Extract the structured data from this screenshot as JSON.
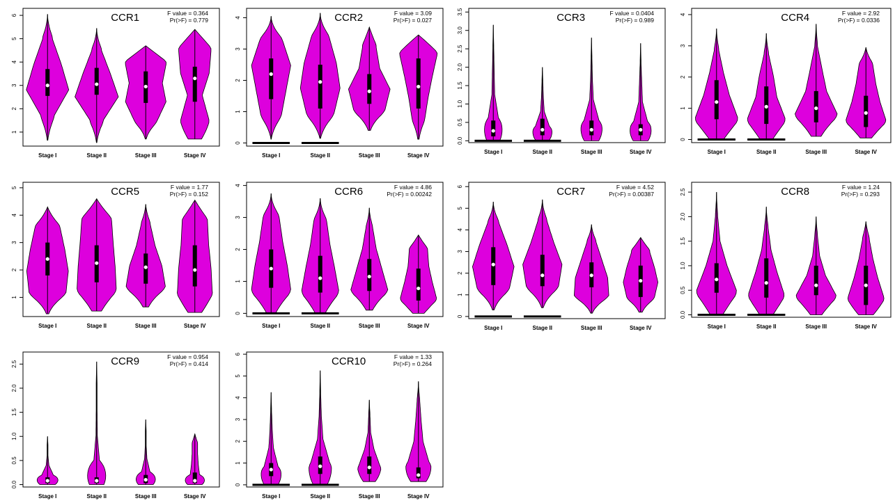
{
  "colors": {
    "violin": "#dd00dd",
    "box": "#000000",
    "median": "#ffffff",
    "axis": "#000000"
  },
  "chart_data": [
    {
      "type": "violin",
      "title": "CCR1",
      "f_label": "F value = 0.364",
      "p_label": "Pr(>F) = 0.779",
      "categories": [
        "Stage I",
        "Stage II",
        "Stage III",
        "Stage IV"
      ],
      "yticks": [
        "1",
        "2",
        "3",
        "4",
        "5",
        "6"
      ],
      "ytick_values": [
        1,
        2,
        3,
        4,
        5,
        6
      ],
      "ylim": [
        0.4,
        6.3
      ],
      "series": [
        {
          "min": 0.65,
          "max": 6.05,
          "q1": 2.55,
          "median": 3.0,
          "q3": 3.7,
          "width_profile": [
            0.04,
            0.3,
            0.92,
            0.6,
            0.22,
            0.03
          ]
        },
        {
          "min": 0.55,
          "max": 5.45,
          "q1": 2.6,
          "median": 3.05,
          "q3": 3.75,
          "width_profile": [
            0.03,
            0.3,
            0.94,
            0.6,
            0.22,
            0.03
          ]
        },
        {
          "min": 0.7,
          "max": 4.7,
          "q1": 2.25,
          "median": 2.95,
          "q3": 3.6,
          "width_profile": [
            0.06,
            0.5,
            0.88,
            0.72,
            0.88,
            0.88
          ]
        },
        {
          "min": 0.7,
          "max": 5.4,
          "q1": 2.3,
          "median": 3.3,
          "q3": 3.8,
          "width_profile": [
            0.82,
            0.58,
            0.32,
            0.62,
            0.7,
            0.7
          ]
        }
      ],
      "zero_bars": []
    },
    {
      "type": "violin",
      "title": "CCR2",
      "f_label": "F value = 3.09",
      "p_label": "Pr(>F) = 0.027",
      "categories": [
        "Stage I",
        "Stage II",
        "Stage III",
        "Stage IV"
      ],
      "yticks": [
        "0",
        "1",
        "2",
        "3",
        "4"
      ],
      "ytick_values": [
        0,
        1,
        2,
        3,
        4
      ],
      "ylim": [
        -0.1,
        4.3
      ],
      "series": [
        {
          "min": 0.12,
          "max": 4.05,
          "q1": 1.4,
          "median": 2.2,
          "q3": 2.7,
          "width_profile": [
            0.02,
            0.45,
            0.65,
            0.85,
            0.5,
            0.04
          ]
        },
        {
          "min": 0.15,
          "max": 4.15,
          "q1": 1.1,
          "median": 1.95,
          "q3": 2.5,
          "width_profile": [
            0.05,
            0.6,
            0.86,
            0.7,
            0.4,
            0.02
          ]
        },
        {
          "min": 0.4,
          "max": 3.7,
          "q1": 1.25,
          "median": 1.65,
          "q3": 2.2,
          "width_profile": [
            0.14,
            0.68,
            0.9,
            0.45,
            0.3,
            0.25
          ]
        },
        {
          "min": 0.12,
          "max": 3.45,
          "q1": 1.1,
          "median": 1.8,
          "q3": 2.7,
          "width_profile": [
            0.08,
            0.28,
            0.42,
            0.6,
            0.8,
            0.9
          ]
        }
      ],
      "zero_bars": [
        1,
        1,
        0,
        0
      ]
    },
    {
      "type": "violin",
      "title": "CCR3",
      "f_label": "F value = 0.0404",
      "p_label": "Pr(>F) = 0.989",
      "categories": [
        "Stage I",
        "Stage II",
        "Stage III",
        "Stage IV"
      ],
      "yticks": [
        "0.0",
        "0.5",
        "1.0",
        "1.5",
        "2.0",
        "2.5",
        "3.0",
        "3.5"
      ],
      "ytick_values": [
        0,
        0.5,
        1,
        1.5,
        2,
        2.5,
        3,
        3.5
      ],
      "ylim": [
        -0.05,
        3.6
      ],
      "series": [
        {
          "min": 0.0,
          "max": 3.15,
          "q1": 0.12,
          "median": 0.27,
          "q3": 0.55,
          "width_profile": [
            0.8,
            0.22,
            0.06,
            0.04,
            0.02,
            0.02
          ]
        },
        {
          "min": 0.0,
          "max": 2.0,
          "q1": 0.15,
          "median": 0.3,
          "q3": 0.6,
          "width_profile": [
            0.8,
            0.3,
            0.08,
            0.04,
            0.02,
            0.02
          ]
        },
        {
          "min": 0.0,
          "max": 2.8,
          "q1": 0.15,
          "median": 0.3,
          "q3": 0.55,
          "width_profile": [
            0.9,
            0.32,
            0.08,
            0.04,
            0.02,
            0.02
          ]
        },
        {
          "min": 0.0,
          "max": 2.65,
          "q1": 0.15,
          "median": 0.3,
          "q3": 0.45,
          "width_profile": [
            0.92,
            0.3,
            0.08,
            0.05,
            0.02,
            0.02
          ]
        }
      ],
      "zero_bars": [
        1,
        1,
        0,
        0
      ]
    },
    {
      "type": "violin",
      "title": "CCR4",
      "f_label": "F value = 2.92",
      "p_label": "Pr(>F) = 0.0336",
      "categories": [
        "Stage I",
        "Stage II",
        "Stage III",
        "Stage IV"
      ],
      "yticks": [
        "0",
        "1",
        "2",
        "3",
        "4"
      ],
      "ytick_values": [
        0,
        1,
        2,
        3,
        4
      ],
      "ylim": [
        -0.1,
        4.2
      ],
      "series": [
        {
          "min": 0.0,
          "max": 3.55,
          "q1": 0.65,
          "median": 1.2,
          "q3": 1.9,
          "width_profile": [
            0.85,
            0.9,
            0.55,
            0.3,
            0.1,
            0.02
          ]
        },
        {
          "min": 0.0,
          "max": 3.4,
          "q1": 0.5,
          "median": 1.05,
          "q3": 1.7,
          "width_profile": [
            0.75,
            0.8,
            0.45,
            0.3,
            0.1,
            0.02
          ]
        },
        {
          "min": 0.1,
          "max": 3.7,
          "q1": 0.55,
          "median": 1.0,
          "q3": 1.55,
          "width_profile": [
            0.6,
            0.9,
            0.45,
            0.25,
            0.06,
            0.02
          ]
        },
        {
          "min": 0.05,
          "max": 2.95,
          "q1": 0.4,
          "median": 0.85,
          "q3": 1.4,
          "width_profile": [
            0.7,
            0.85,
            0.6,
            0.42,
            0.3,
            0.12
          ]
        }
      ],
      "zero_bars": [
        1,
        1,
        0,
        0
      ]
    },
    {
      "type": "violin",
      "title": "CCR5",
      "f_label": "F value = 1.77",
      "p_label": "Pr(>F) = 0.152",
      "categories": [
        "Stage I",
        "Stage II",
        "Stage III",
        "Stage IV"
      ],
      "yticks": [
        "1",
        "2",
        "3",
        "4",
        "5"
      ],
      "ytick_values": [
        1,
        2,
        3,
        4,
        5
      ],
      "ylim": [
        0.3,
        5.2
      ],
      "series": [
        {
          "min": 0.4,
          "max": 4.3,
          "q1": 1.8,
          "median": 2.4,
          "q3": 3.0,
          "width_profile": [
            0.15,
            0.8,
            0.9,
            0.75,
            0.55,
            0.3
          ]
        },
        {
          "min": 0.5,
          "max": 4.6,
          "q1": 1.55,
          "median": 2.25,
          "q3": 2.9,
          "width_profile": [
            0.6,
            0.85,
            0.8,
            0.72,
            0.65,
            0.5
          ]
        },
        {
          "min": 0.65,
          "max": 4.4,
          "q1": 1.5,
          "median": 2.1,
          "q3": 2.6,
          "width_profile": [
            0.35,
            0.85,
            0.7,
            0.4,
            0.2,
            0.06
          ]
        },
        {
          "min": 0.45,
          "max": 4.55,
          "q1": 1.4,
          "median": 2.0,
          "q3": 2.9,
          "width_profile": [
            0.85,
            0.75,
            0.7,
            0.6,
            0.55,
            0.5
          ]
        }
      ],
      "zero_bars": []
    },
    {
      "type": "violin",
      "title": "CCR6",
      "f_label": "F value = 4.86",
      "p_label": "Pr(>F) = 0.00242",
      "categories": [
        "Stage I",
        "Stage II",
        "Stage III",
        "Stage IV"
      ],
      "yticks": [
        "0",
        "1",
        "2",
        "3",
        "4"
      ],
      "ytick_values": [
        0,
        1,
        2,
        3,
        4
      ],
      "ylim": [
        -0.1,
        4.1
      ],
      "series": [
        {
          "min": 0.0,
          "max": 3.75,
          "q1": 0.8,
          "median": 1.4,
          "q3": 2.0,
          "width_profile": [
            0.55,
            0.85,
            0.7,
            0.5,
            0.35,
            0.03
          ]
        },
        {
          "min": 0.0,
          "max": 3.6,
          "q1": 0.65,
          "median": 1.1,
          "q3": 1.8,
          "width_profile": [
            0.6,
            0.8,
            0.62,
            0.42,
            0.28,
            0.03
          ]
        },
        {
          "min": 0.1,
          "max": 3.3,
          "q1": 0.7,
          "median": 1.15,
          "q3": 1.7,
          "width_profile": [
            0.4,
            0.8,
            0.55,
            0.3,
            0.15,
            0.03
          ]
        },
        {
          "min": 0.0,
          "max": 2.45,
          "q1": 0.4,
          "median": 0.78,
          "q3": 1.4,
          "width_profile": [
            0.7,
            0.78,
            0.6,
            0.45,
            0.4,
            0.35
          ]
        }
      ],
      "zero_bars": [
        1,
        1,
        0,
        0
      ]
    },
    {
      "type": "violin",
      "title": "CCR7",
      "f_label": "F value = 4.52",
      "p_label": "Pr(>F) = 0.00387",
      "categories": [
        "Stage I",
        "Stage II",
        "Stage III",
        "Stage IV"
      ],
      "yticks": [
        "0",
        "1",
        "2",
        "3",
        "4",
        "5",
        "6"
      ],
      "ytick_values": [
        0,
        1,
        2,
        3,
        4,
        5,
        6
      ],
      "ylim": [
        -0.1,
        6.2
      ],
      "series": [
        {
          "min": 0.3,
          "max": 5.3,
          "q1": 1.45,
          "median": 2.4,
          "q3": 3.2,
          "width_profile": [
            0.1,
            0.7,
            0.9,
            0.6,
            0.25,
            0.03
          ]
        },
        {
          "min": 0.4,
          "max": 5.4,
          "q1": 1.4,
          "median": 1.9,
          "q3": 2.85,
          "width_profile": [
            0.1,
            0.7,
            0.85,
            0.5,
            0.2,
            0.03
          ]
        },
        {
          "min": 0.15,
          "max": 4.25,
          "q1": 1.35,
          "median": 1.9,
          "q3": 2.5,
          "width_profile": [
            0.1,
            0.75,
            0.7,
            0.45,
            0.2,
            0.05
          ]
        },
        {
          "min": 0.2,
          "max": 3.65,
          "q1": 0.9,
          "median": 1.65,
          "q3": 2.35,
          "width_profile": [
            0.2,
            0.6,
            0.75,
            0.6,
            0.4,
            0.35
          ]
        }
      ],
      "zero_bars": [
        1,
        1,
        0,
        0
      ]
    },
    {
      "type": "violin",
      "title": "CCR8",
      "f_label": "F value = 1.24",
      "p_label": "Pr(>F) = 0.293",
      "categories": [
        "Stage I",
        "Stage II",
        "Stage III",
        "Stage IV"
      ],
      "yticks": [
        "0.0",
        "0.5",
        "1.0",
        "1.5",
        "2.0",
        "2.5"
      ],
      "ytick_values": [
        0,
        0.5,
        1,
        1.5,
        2,
        2.5
      ],
      "ylim": [
        -0.05,
        2.7
      ],
      "series": [
        {
          "min": 0.0,
          "max": 2.5,
          "q1": 0.45,
          "median": 0.72,
          "q3": 1.05,
          "width_profile": [
            0.75,
            0.85,
            0.45,
            0.15,
            0.05,
            0.02
          ]
        },
        {
          "min": 0.0,
          "max": 2.2,
          "q1": 0.35,
          "median": 0.65,
          "q3": 1.15,
          "width_profile": [
            0.8,
            0.75,
            0.45,
            0.2,
            0.08,
            0.02
          ]
        },
        {
          "min": 0.0,
          "max": 2.0,
          "q1": 0.4,
          "median": 0.6,
          "q3": 1.0,
          "width_profile": [
            0.7,
            0.85,
            0.4,
            0.15,
            0.06,
            0.02
          ]
        },
        {
          "min": 0.0,
          "max": 1.9,
          "q1": 0.2,
          "median": 0.6,
          "q3": 1.0,
          "width_profile": [
            0.9,
            0.75,
            0.5,
            0.3,
            0.15,
            0.08
          ]
        }
      ],
      "zero_bars": [
        1,
        1,
        0,
        0
      ]
    },
    {
      "type": "violin",
      "title": "CCR9",
      "f_label": "F value = 0.954",
      "p_label": "Pr(>F) = 0.414",
      "categories": [
        "Stage I",
        "Stage II",
        "Stage III",
        "Stage IV"
      ],
      "yticks": [
        "0.0",
        "0.5",
        "1.0",
        "1.5",
        "2.0",
        "2.5"
      ],
      "ytick_values": [
        0,
        0.5,
        1,
        1.5,
        2,
        2.5
      ],
      "ylim": [
        -0.05,
        2.75
      ],
      "series": [
        {
          "min": 0.0,
          "max": 1.0,
          "q1": 0.03,
          "median": 0.08,
          "q3": 0.15,
          "width_profile": [
            0.95,
            0.25,
            0.06,
            0.02,
            0.02,
            0.02
          ]
        },
        {
          "min": 0.0,
          "max": 2.55,
          "q1": 0.03,
          "median": 0.08,
          "q3": 0.15,
          "width_profile": [
            0.9,
            0.12,
            0.03,
            0.02,
            0.02,
            0.02
          ]
        },
        {
          "min": 0.0,
          "max": 1.35,
          "q1": 0.03,
          "median": 0.1,
          "q3": 0.2,
          "width_profile": [
            0.92,
            0.18,
            0.05,
            0.02,
            0.02,
            0.02
          ]
        },
        {
          "min": 0.0,
          "max": 1.05,
          "q1": 0.03,
          "median": 0.08,
          "q3": 0.25,
          "width_profile": [
            0.9,
            0.2,
            0.15,
            0.12,
            0.12,
            0.1
          ]
        }
      ],
      "zero_bars": [
        0,
        0,
        0,
        0
      ]
    },
    {
      "type": "violin",
      "title": "CCR10",
      "f_label": "F value = 1.33",
      "p_label": "Pr(>F) = 0.264",
      "categories": [
        "Stage I",
        "Stage II",
        "Stage III",
        "Stage IV"
      ],
      "yticks": [
        "0",
        "1",
        "2",
        "3",
        "4",
        "5",
        "6"
      ],
      "ytick_values": [
        0,
        1,
        2,
        3,
        4,
        5,
        6
      ],
      "ylim": [
        -0.1,
        6.1
      ],
      "series": [
        {
          "min": 0.0,
          "max": 4.25,
          "q1": 0.4,
          "median": 0.7,
          "q3": 1.0,
          "width_profile": [
            0.85,
            0.3,
            0.1,
            0.05,
            0.02,
            0.02
          ]
        },
        {
          "min": 0.0,
          "max": 5.25,
          "q1": 0.5,
          "median": 0.85,
          "q3": 1.3,
          "width_profile": [
            0.85,
            0.4,
            0.12,
            0.05,
            0.02,
            0.02
          ]
        },
        {
          "min": 0.15,
          "max": 3.9,
          "q1": 0.5,
          "median": 0.8,
          "q3": 1.3,
          "width_profile": [
            0.75,
            0.45,
            0.2,
            0.06,
            0.03,
            0.02
          ]
        },
        {
          "min": 0.15,
          "max": 4.75,
          "q1": 0.3,
          "median": 0.45,
          "q3": 0.8,
          "width_profile": [
            0.95,
            0.45,
            0.2,
            0.12,
            0.06,
            0.02
          ]
        }
      ],
      "zero_bars": [
        1,
        1,
        0,
        0
      ]
    }
  ]
}
